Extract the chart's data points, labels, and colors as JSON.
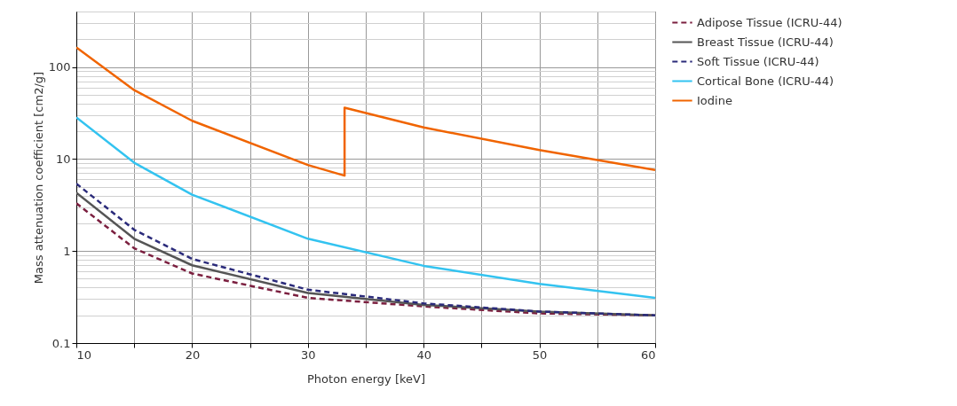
{
  "chart_data": {
    "type": "line",
    "xlabel": "Photon energy [keV]",
    "ylabel": "Mass attenuation coefficient [cm2/g]",
    "log": "y",
    "grid": true,
    "legend": "top right",
    "xlim": [
      10,
      60
    ],
    "xticks": [
      10,
      {
        "value": 15,
        "label": null
      },
      20,
      {
        "value": 25,
        "label": null
      },
      30,
      {
        "value": 35,
        "label": null
      },
      40,
      {
        "value": 45,
        "label": null
      },
      50,
      {
        "value": 55,
        "label": null
      },
      60
    ],
    "ylim": [
      0.1,
      400
    ],
    "yticks": [
      0.1,
      {
        "value": 0.2,
        "label": null
      },
      {
        "value": 0.3,
        "label": null
      },
      {
        "value": 0.4,
        "label": null
      },
      {
        "value": 0.5,
        "label": null
      },
      {
        "value": 0.6,
        "label": null
      },
      {
        "value": 0.7,
        "label": null
      },
      {
        "value": 0.8,
        "label": null
      },
      {
        "value": 0.9,
        "label": null
      },
      1,
      {
        "value": 2,
        "label": null
      },
      {
        "value": 3,
        "label": null
      },
      {
        "value": 4,
        "label": null
      },
      {
        "value": 5,
        "label": null
      },
      {
        "value": 6,
        "label": null
      },
      {
        "value": 7,
        "label": null
      },
      {
        "value": 8,
        "label": null
      },
      {
        "value": 9,
        "label": null
      },
      10,
      {
        "value": 20,
        "label": null
      },
      {
        "value": 30,
        "label": null
      },
      {
        "value": 40,
        "label": null
      },
      {
        "value": 50,
        "label": null
      },
      {
        "value": 60,
        "label": null
      },
      {
        "value": 70,
        "label": null
      },
      {
        "value": 80,
        "label": null
      },
      {
        "value": 90,
        "label": null
      },
      100,
      {
        "value": 200,
        "label": null
      },
      {
        "value": 300,
        "label": null
      },
      {
        "value": 400,
        "label": null
      }
    ],
    "series": [
      {
        "name": "Adipose Tissue (ICRU-44)",
        "color": "#7b1f3f",
        "line_style": "dashed",
        "x": [
          10,
          15,
          20,
          30,
          40,
          50,
          60
        ],
        "values": [
          3.3,
          1.07,
          0.57,
          0.31,
          0.25,
          0.21,
          0.2
        ]
      },
      {
        "name": "Breast Tissue (ICRU-44)",
        "color": "#555555",
        "line_style": "solid",
        "x": [
          10,
          15,
          20,
          30,
          40,
          50,
          60
        ],
        "values": [
          4.3,
          1.36,
          0.7,
          0.35,
          0.26,
          0.22,
          0.2
        ]
      },
      {
        "name": "Soft Tissue (ICRU-44)",
        "color": "#2a2a7a",
        "line_style": "dashed",
        "x": [
          10,
          15,
          20,
          30,
          40,
          50,
          60
        ],
        "values": [
          5.4,
          1.7,
          0.82,
          0.38,
          0.27,
          0.22,
          0.2
        ]
      },
      {
        "name": "Cortical Bone (ICRU-44)",
        "color": "#33c3f0",
        "line_style": "solid",
        "x": [
          10,
          15,
          20,
          30,
          40,
          50,
          60
        ],
        "values": [
          28.3,
          9.1,
          4.1,
          1.36,
          0.69,
          0.44,
          0.31
        ]
      },
      {
        "name": "Iodine",
        "color": "#f06400",
        "line_style": "solid",
        "x": [
          10,
          15,
          20,
          30,
          33.17,
          33.17,
          40,
          50,
          60
        ],
        "values": [
          163,
          56,
          26,
          8.6,
          6.6,
          36,
          22,
          12.5,
          7.6
        ]
      }
    ]
  }
}
